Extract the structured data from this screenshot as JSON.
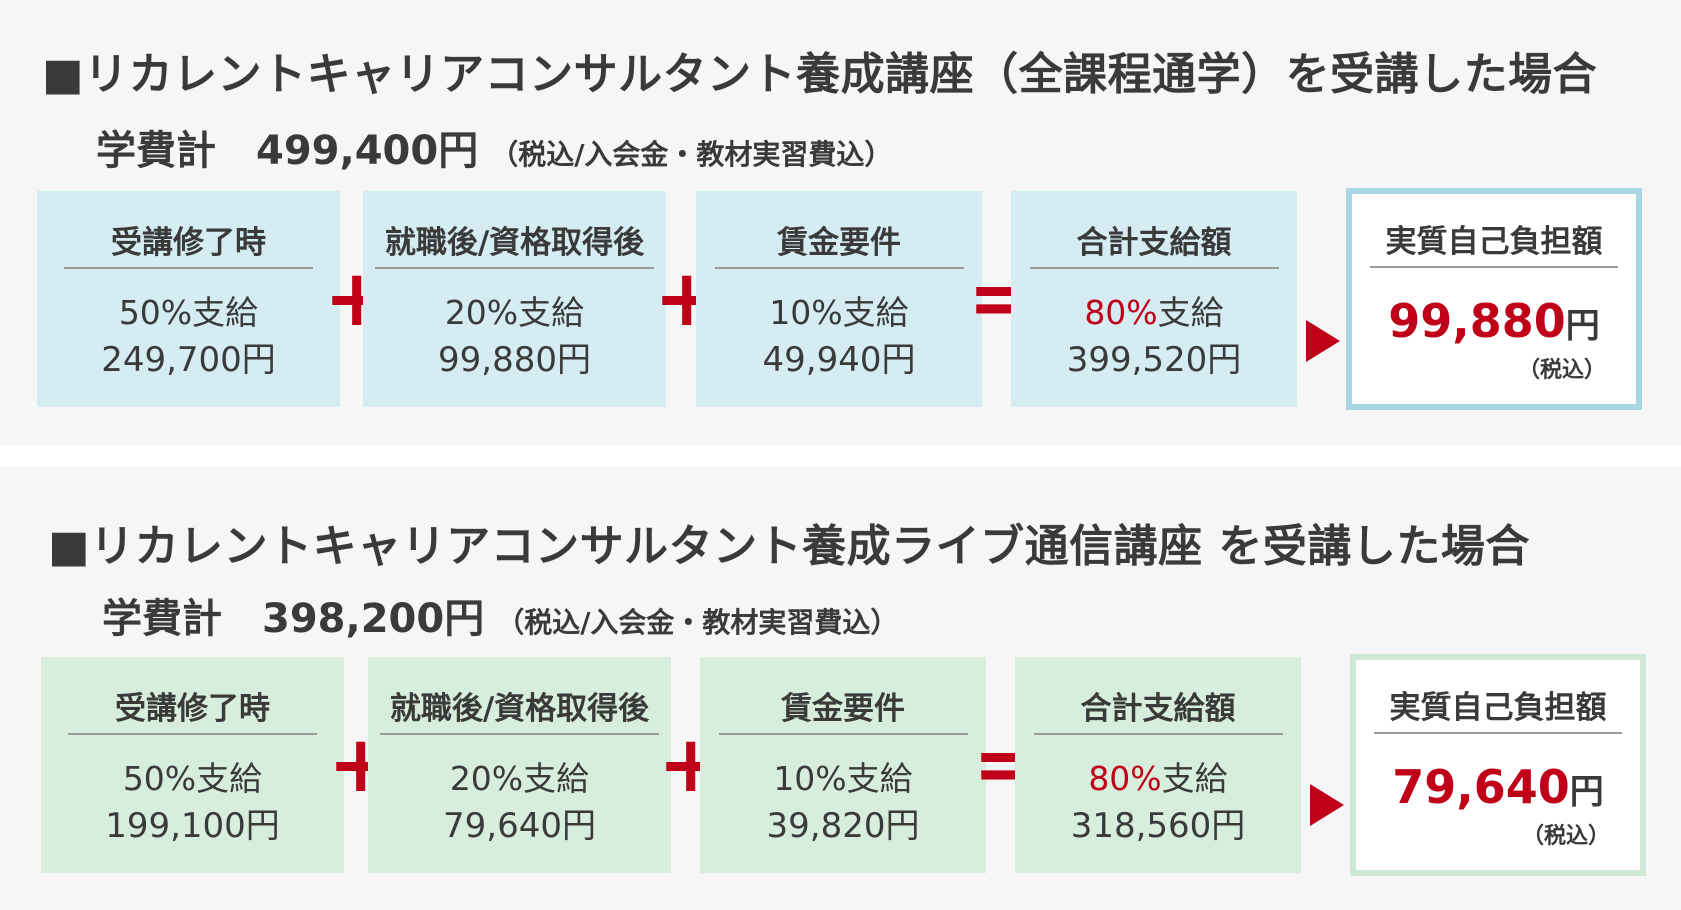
{
  "sections": [
    {
      "title": "■リカレントキャリアコンサルタント養成講座（全課程通学）を受講した場合",
      "fee_label": "学費計",
      "fee_amount": "499,400円",
      "fee_note": "（税込/入会金・教材実習費込）",
      "boxes": [
        {
          "heading": "受講修了時",
          "pct": "50%",
          "pct_suffix": "支給",
          "amount": "249,700円"
        },
        {
          "heading": "就職後/資格取得後",
          "pct": "20%",
          "pct_suffix": "支給",
          "amount": "99,880円"
        },
        {
          "heading": "賃金要件",
          "pct": "10%",
          "pct_suffix": "支給",
          "amount": "49,940円"
        },
        {
          "heading": "合計支給額",
          "pct": "80%",
          "pct_suffix": "支給",
          "amount": "399,520円"
        }
      ],
      "operators": [
        "+",
        "+",
        "="
      ],
      "final": {
        "heading": "実質自己負担額",
        "amount": "99,880",
        "unit": "円",
        "tax": "（税込）"
      }
    },
    {
      "title": "■リカレントキャリアコンサルタント養成ライブ通信講座 を受講した場合",
      "fee_label": "学費計",
      "fee_amount": "398,200円",
      "fee_note": "（税込/入会金・教材実習費込）",
      "boxes": [
        {
          "heading": "受講修了時",
          "pct": "50%",
          "pct_suffix": "支給",
          "amount": "199,100円"
        },
        {
          "heading": "就職後/資格取得後",
          "pct": "20%",
          "pct_suffix": "支給",
          "amount": "79,640円"
        },
        {
          "heading": "賃金要件",
          "pct": "10%",
          "pct_suffix": "支給",
          "amount": "39,820円"
        },
        {
          "heading": "合計支給額",
          "pct": "80%",
          "pct_suffix": "支給",
          "amount": "318,560円"
        }
      ],
      "operators": [
        "+",
        "+",
        "="
      ],
      "final": {
        "heading": "実質自己負担額",
        "amount": "79,640",
        "unit": "円",
        "tax": "（税込）"
      }
    }
  ],
  "colors": {
    "accent_red": "#c00018",
    "section1_box_bg": "#d4ecf2",
    "section1_final_border": "#a9d6e3",
    "section2_box_bg": "#d8eedc",
    "section2_final_border": "#cfe9d6",
    "text": "#3a3a3a"
  }
}
